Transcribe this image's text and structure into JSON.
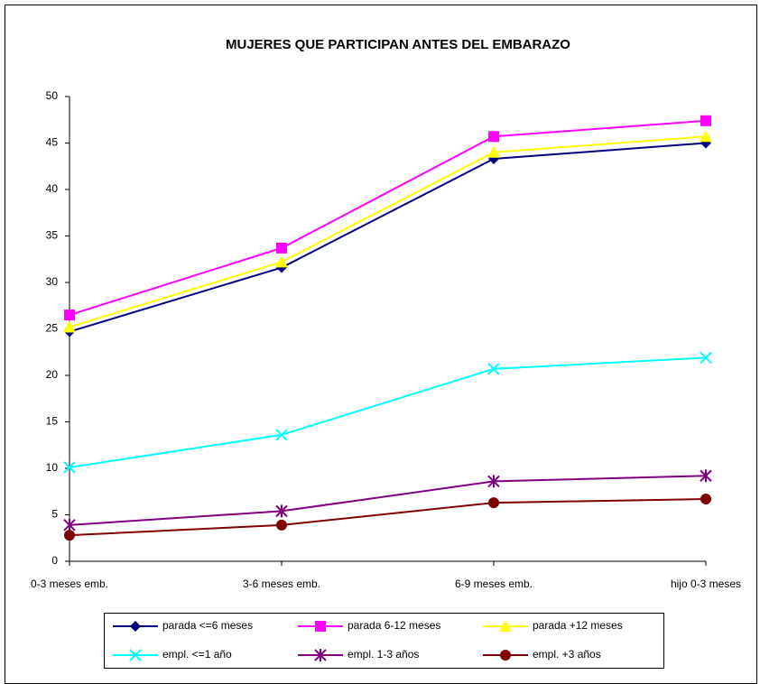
{
  "chart_data": {
    "type": "line",
    "title": "MUJERES QUE PARTICIPAN ANTES DEL EMBARAZO",
    "categories": [
      "0-3 meses emb.",
      "3-6 meses emb.",
      "6-9 meses emb.",
      "hijo 0-3 meses"
    ],
    "series": [
      {
        "name": "parada <=6 meses",
        "color": "#000080",
        "marker": "diamond",
        "values": [
          24.7,
          31.6,
          43.3,
          45.0
        ]
      },
      {
        "name": "parada 6-12 meses",
        "color": "#ff00ff",
        "marker": "square",
        "values": [
          26.5,
          33.7,
          45.7,
          47.4
        ]
      },
      {
        "name": "parada +12 meses",
        "color": "#ffff00",
        "marker": "triangle",
        "values": [
          25.2,
          32.2,
          44.0,
          45.7
        ]
      },
      {
        "name": "empl. <=1 año",
        "color": "#00ffff",
        "marker": "x",
        "values": [
          10.1,
          13.6,
          20.7,
          21.9
        ]
      },
      {
        "name": "empl. 1-3 años",
        "color": "#800080",
        "marker": "asterisk",
        "values": [
          3.9,
          5.4,
          8.6,
          9.2
        ]
      },
      {
        "name": "empl. +3 años",
        "color": "#800000",
        "marker": "circle",
        "values": [
          2.8,
          3.9,
          6.3,
          6.7
        ]
      }
    ],
    "ylim": [
      0,
      50
    ],
    "yticks": [
      0,
      5,
      10,
      15,
      20,
      25,
      30,
      35,
      40,
      45,
      50
    ],
    "grid": false,
    "legend": "bottom"
  }
}
